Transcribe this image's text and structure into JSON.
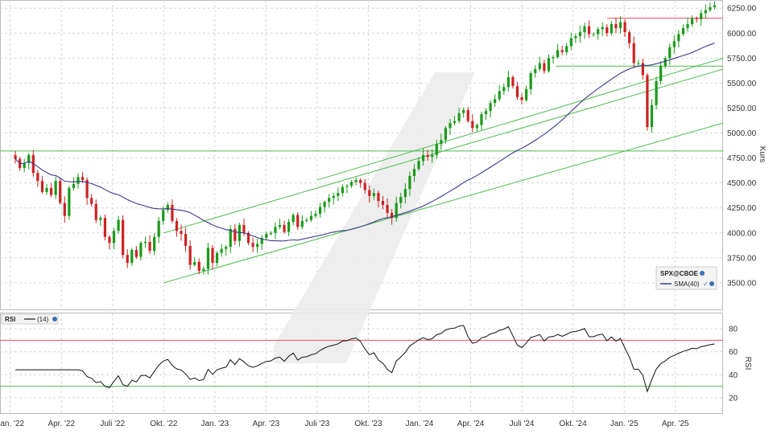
{
  "chart_data": [
    {
      "type": "candlestick",
      "title": "",
      "ylabel": "Kurs",
      "ylim": [
        3250,
        6300
      ],
      "y_ticks": [
        "6250.00",
        "6000.00",
        "5750.00",
        "5500.00",
        "5250.00",
        "5000.00",
        "4750.00",
        "4500.00",
        "4250.00",
        "4000.00",
        "3750.00",
        "3500.00"
      ],
      "y_tick_values": [
        6250,
        6000,
        5750,
        5500,
        5250,
        5000,
        4750,
        4500,
        4250,
        4000,
        3750,
        3500
      ],
      "x_ticks": [
        "Jan. '22",
        "Apr. '22",
        "Juli '22",
        "Okt. '22",
        "Jan. '23",
        "Apr. '23",
        "Juli '23",
        "Okt. '23",
        "Jan. '24",
        "Apr. '24",
        "Juli '24",
        "Okt. '24",
        "Jan. '25",
        "Apr. '25"
      ],
      "x_tick_months": [
        0,
        3,
        6,
        9,
        12,
        15,
        18,
        21,
        24,
        27,
        30,
        33,
        36,
        39
      ],
      "x_range_months": [
        -0.6,
        41.8
      ],
      "grid": true,
      "legend": {
        "placement": "bottom-right",
        "symbol": "SPX@CBOE",
        "indicator": "SMA(40)"
      },
      "colors": {
        "up": "#1a9a1a",
        "down": "#cc2222",
        "sma": "#3a3a8c",
        "trendline": "#4cbb4c",
        "resistance": "#e05060"
      },
      "closes": [
        4740,
        4650,
        4700,
        4780,
        4600,
        4520,
        4410,
        4450,
        4380,
        4520,
        4300,
        4170,
        4450,
        4490,
        4560,
        4530,
        4350,
        4290,
        4130,
        4150,
        3960,
        3900,
        4020,
        4130,
        3780,
        3700,
        3830,
        3760,
        3900,
        3910,
        3820,
        3960,
        4120,
        4230,
        4280,
        4120,
        4020,
        3990,
        3870,
        3680,
        3710,
        3620,
        3640,
        3850,
        3700,
        3800,
        3840,
        3860,
        4040,
        3920,
        4080,
        4000,
        3900,
        3860,
        3890,
        3950,
        3990,
        4000,
        4060,
        4080,
        4010,
        4110,
        4180,
        4060,
        4120,
        4130,
        4170,
        4190,
        4260,
        4310,
        4350,
        4370,
        4400,
        4460,
        4470,
        4510,
        4530,
        4500,
        4430,
        4370,
        4400,
        4320,
        4280,
        4200,
        4150,
        4300,
        4360,
        4440,
        4570,
        4640,
        4720,
        4780,
        4760,
        4780,
        4890,
        4930,
        5050,
        5100,
        5120,
        5200,
        5230,
        5120,
        5050,
        5080,
        5190,
        5220,
        5300,
        5340,
        5420,
        5460,
        5560,
        5470,
        5360,
        5330,
        5440,
        5600,
        5640,
        5700,
        5620,
        5750,
        5760,
        5830,
        5810,
        5870,
        5950,
        5970,
        6010,
        6070,
        5990,
        5990,
        6040,
        6060,
        6000,
        6090,
        6050,
        6110,
        6010,
        5900,
        5700,
        5700,
        5580,
        5060,
        5280,
        5520,
        5670,
        5750,
        5860,
        5920,
        5990,
        6050,
        6090,
        6150,
        6140,
        6200,
        6230,
        6260,
        6280
      ]
    },
    {
      "type": "line",
      "name": "SMA(40)",
      "window": 40
    },
    {
      "type": "line",
      "title": "",
      "ylabel": "RSI",
      "ylim": [
        8,
        92
      ],
      "y_ticks": [
        "80",
        "60",
        "40",
        "20"
      ],
      "y_tick_values": [
        80,
        60,
        40,
        20
      ],
      "reference_lines": [
        70,
        30
      ],
      "legend": {
        "label": "RSI",
        "indicator": "(14)"
      },
      "colors": {
        "rsi": "#111111",
        "overbought": "#e05060",
        "oversold": "#4cbb4c"
      }
    }
  ]
}
